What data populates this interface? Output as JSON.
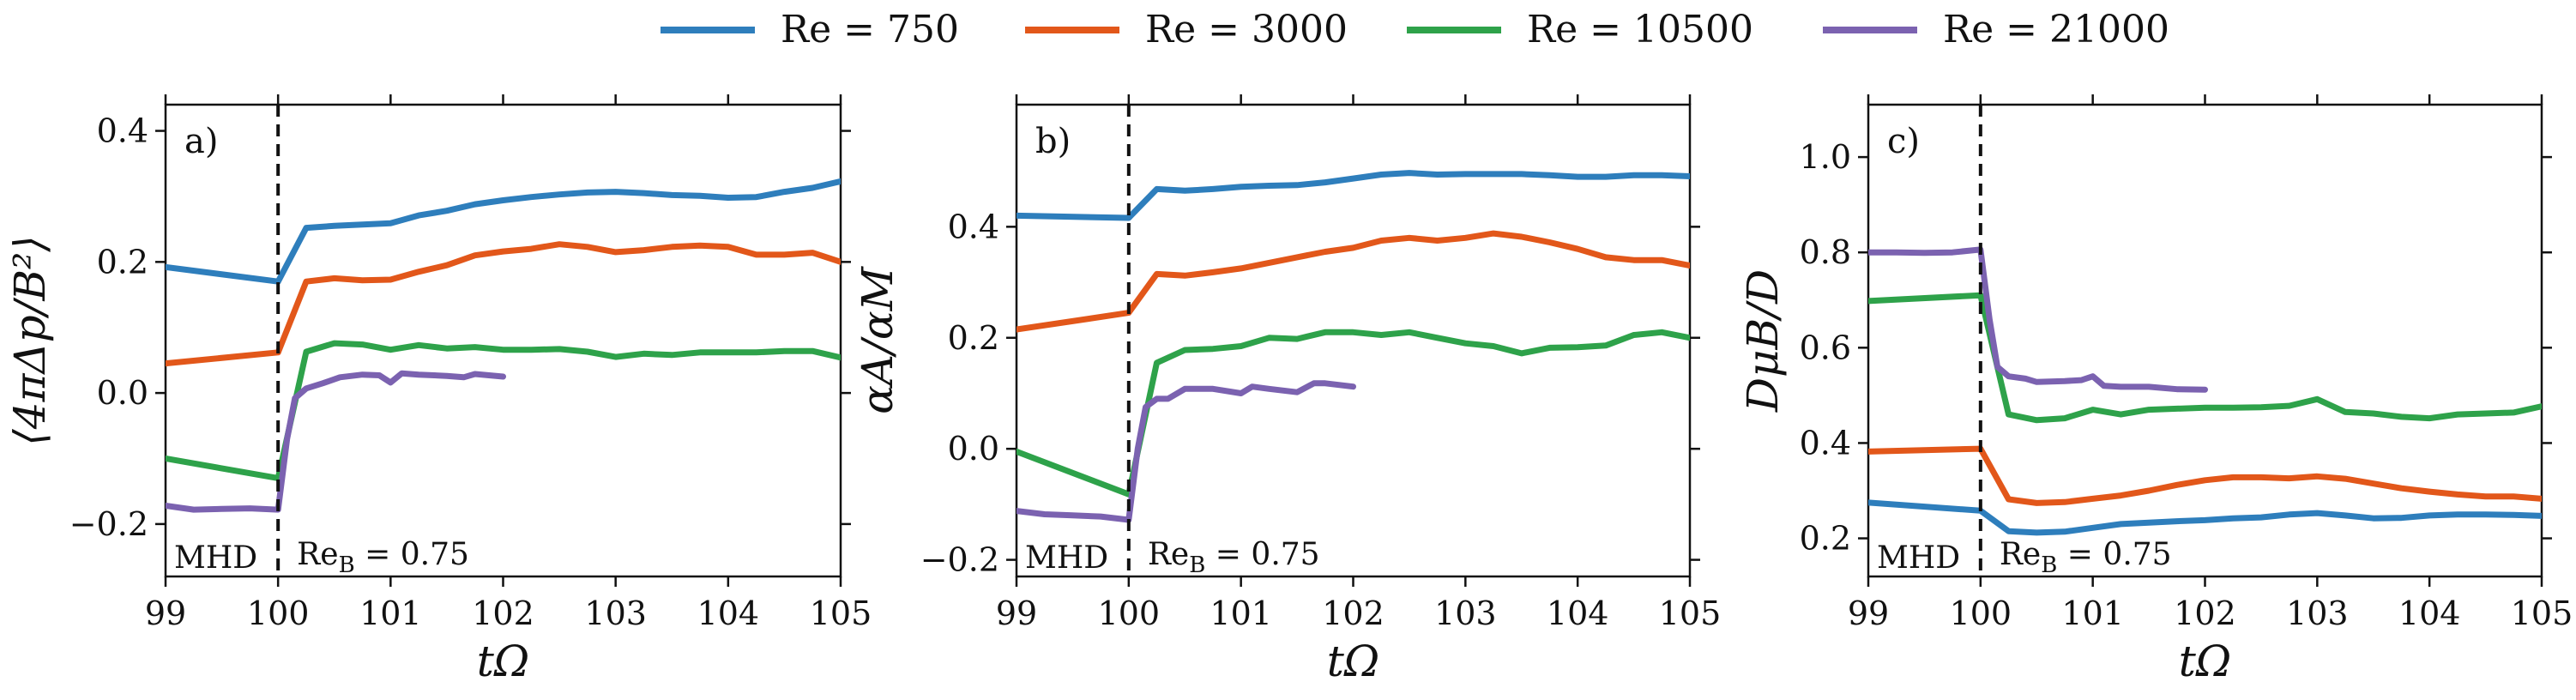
{
  "legend": {
    "entries": [
      {
        "name": "Re = 750",
        "color": "#2e7ebc"
      },
      {
        "name": "Re = 3000",
        "color": "#e2571a"
      },
      {
        "name": "Re = 10500",
        "color": "#2ea24a"
      },
      {
        "name": "Re = 21000",
        "color": "#7b62b0"
      }
    ]
  },
  "annotations": {
    "left": "MHD",
    "right": "Re",
    "right_sub": "B",
    "right_value": " = 0.75"
  },
  "chart_data": [
    {
      "type": "line",
      "panel_label": "a)",
      "xlabel": "tΩ",
      "ylabel": "⟨4πΔp/B²⟩",
      "xlim": [
        99,
        105
      ],
      "ylim": [
        -0.28,
        0.44
      ],
      "xticks": [
        99,
        100,
        101,
        102,
        103,
        104,
        105
      ],
      "xtick_labels": [
        "99",
        "100",
        "101",
        "102",
        "103",
        "104",
        "105"
      ],
      "yticks": [
        -0.2,
        0.0,
        0.2,
        0.4
      ],
      "ytick_labels": [
        "−0.2",
        "0.0",
        "0.2",
        "0.4"
      ],
      "vline_x": 100,
      "series": [
        {
          "name": "Re = 750",
          "x": [
            99,
            100,
            100.25,
            100.5,
            101,
            101.25,
            101.5,
            101.75,
            102,
            102.25,
            102.5,
            102.75,
            103,
            103.25,
            103.5,
            103.75,
            104,
            104.25,
            104.5,
            104.75,
            105
          ],
          "y": [
            0.192,
            0.17,
            0.252,
            0.255,
            0.259,
            0.271,
            0.278,
            0.288,
            0.294,
            0.299,
            0.303,
            0.306,
            0.307,
            0.305,
            0.302,
            0.301,
            0.298,
            0.299,
            0.307,
            0.313,
            0.323
          ]
        },
        {
          "name": "Re = 3000",
          "x": [
            99,
            100,
            100.25,
            100.5,
            100.75,
            101,
            101.25,
            101.5,
            101.75,
            102,
            102.25,
            102.5,
            102.75,
            103,
            103.25,
            103.5,
            103.75,
            104,
            104.25,
            104.5,
            104.75,
            105
          ],
          "y": [
            0.045,
            0.062,
            0.17,
            0.175,
            0.172,
            0.173,
            0.185,
            0.195,
            0.21,
            0.216,
            0.22,
            0.227,
            0.223,
            0.215,
            0.218,
            0.223,
            0.225,
            0.223,
            0.211,
            0.211,
            0.214,
            0.2
          ]
        },
        {
          "name": "Re = 10500",
          "x": [
            99,
            100,
            100.25,
            100.5,
            100.75,
            101,
            101.25,
            101.5,
            101.75,
            102,
            102.25,
            102.5,
            102.75,
            103,
            103.25,
            103.5,
            103.75,
            104,
            104.25,
            104.5,
            104.75,
            105
          ],
          "y": [
            -0.1,
            -0.13,
            0.063,
            0.076,
            0.074,
            0.066,
            0.073,
            0.068,
            0.07,
            0.066,
            0.066,
            0.067,
            0.063,
            0.055,
            0.06,
            0.058,
            0.062,
            0.062,
            0.062,
            0.064,
            0.064,
            0.054
          ]
        },
        {
          "name": "Re = 21000",
          "x": [
            99,
            99.25,
            99.5,
            99.75,
            100,
            100.08,
            100.15,
            100.25,
            100.4,
            100.55,
            100.75,
            100.9,
            101,
            101.1,
            101.25,
            101.5,
            101.65,
            101.75,
            102
          ],
          "y": [
            -0.172,
            -0.178,
            -0.177,
            -0.176,
            -0.178,
            -0.07,
            -0.008,
            0.007,
            0.015,
            0.024,
            0.028,
            0.027,
            0.016,
            0.03,
            0.028,
            0.026,
            0.024,
            0.029,
            0.025
          ]
        }
      ]
    },
    {
      "type": "line",
      "panel_label": "b)",
      "xlabel": "tΩ",
      "ylabel": "αA/αM",
      "xlim": [
        99,
        105
      ],
      "ylim": [
        -0.23,
        0.62
      ],
      "xticks": [
        99,
        100,
        101,
        102,
        103,
        104,
        105
      ],
      "xtick_labels": [
        "99",
        "100",
        "101",
        "102",
        "103",
        "104",
        "105"
      ],
      "yticks": [
        -0.2,
        0.0,
        0.2,
        0.4
      ],
      "ytick_labels": [
        "−0.2",
        "0.0",
        "0.2",
        "0.4"
      ],
      "vline_x": 100,
      "series": [
        {
          "name": "Re = 750",
          "x": [
            99,
            100,
            100.25,
            100.5,
            100.75,
            101,
            101.25,
            101.5,
            101.75,
            102,
            102.25,
            102.5,
            102.75,
            103,
            103.25,
            103.5,
            103.75,
            104,
            104.25,
            104.5,
            104.75,
            105
          ],
          "y": [
            0.42,
            0.416,
            0.468,
            0.465,
            0.468,
            0.472,
            0.474,
            0.475,
            0.48,
            0.487,
            0.494,
            0.497,
            0.494,
            0.495,
            0.495,
            0.495,
            0.493,
            0.49,
            0.49,
            0.493,
            0.493,
            0.491
          ]
        },
        {
          "name": "Re = 3000",
          "x": [
            99,
            100,
            100.25,
            100.5,
            100.75,
            101,
            101.25,
            101.5,
            101.75,
            102,
            102.25,
            102.5,
            102.75,
            103,
            103.25,
            103.5,
            103.75,
            104,
            104.25,
            104.5,
            104.75,
            105
          ],
          "y": [
            0.215,
            0.245,
            0.315,
            0.312,
            0.318,
            0.325,
            0.335,
            0.345,
            0.355,
            0.362,
            0.375,
            0.38,
            0.375,
            0.38,
            0.388,
            0.382,
            0.372,
            0.36,
            0.345,
            0.34,
            0.34,
            0.33
          ]
        },
        {
          "name": "Re = 10500",
          "x": [
            99,
            100,
            100.25,
            100.5,
            100.75,
            101,
            101.25,
            101.5,
            101.75,
            102,
            102.25,
            102.5,
            102.75,
            103,
            103.25,
            103.5,
            103.75,
            104,
            104.25,
            104.5,
            104.75,
            105
          ],
          "y": [
            -0.005,
            -0.082,
            0.155,
            0.178,
            0.18,
            0.185,
            0.2,
            0.198,
            0.21,
            0.21,
            0.205,
            0.21,
            0.2,
            0.19,
            0.185,
            0.172,
            0.182,
            0.183,
            0.186,
            0.205,
            0.21,
            0.2
          ]
        },
        {
          "name": "Re = 21000",
          "x": [
            99,
            99.25,
            99.5,
            99.75,
            100,
            100.08,
            100.15,
            100.25,
            100.35,
            100.5,
            100.75,
            101,
            101.1,
            101.25,
            101.5,
            101.65,
            101.75,
            102
          ],
          "y": [
            -0.112,
            -0.118,
            -0.12,
            -0.122,
            -0.128,
            0.0,
            0.075,
            0.09,
            0.09,
            0.108,
            0.108,
            0.1,
            0.112,
            0.108,
            0.102,
            0.118,
            0.118,
            0.112
          ]
        }
      ]
    },
    {
      "type": "line",
      "panel_label": "c)",
      "xlabel": "tΩ",
      "ylabel": "DμB/D",
      "xlim": [
        99,
        105
      ],
      "ylim": [
        0.12,
        1.11
      ],
      "xticks": [
        99,
        100,
        101,
        102,
        103,
        104,
        105
      ],
      "xtick_labels": [
        "99",
        "100",
        "101",
        "102",
        "103",
        "104",
        "105"
      ],
      "yticks": [
        0.2,
        0.4,
        0.6,
        0.8,
        1.0
      ],
      "ytick_labels": [
        "0.2",
        "0.4",
        "0.6",
        "0.8",
        "1.0"
      ],
      "vline_x": 100,
      "series": [
        {
          "name": "Re = 750",
          "x": [
            99,
            100,
            100.25,
            100.5,
            100.75,
            101,
            101.25,
            101.5,
            101.75,
            102,
            102.25,
            102.5,
            102.75,
            103,
            103.25,
            103.5,
            103.75,
            104,
            104.25,
            104.5,
            104.75,
            105
          ],
          "y": [
            0.275,
            0.258,
            0.215,
            0.212,
            0.214,
            0.222,
            0.23,
            0.233,
            0.236,
            0.238,
            0.242,
            0.244,
            0.25,
            0.253,
            0.248,
            0.242,
            0.243,
            0.248,
            0.25,
            0.25,
            0.249,
            0.247
          ]
        },
        {
          "name": "Re = 3000",
          "x": [
            99,
            100,
            100.25,
            100.5,
            100.75,
            101,
            101.25,
            101.5,
            101.75,
            102,
            102.25,
            102.5,
            102.75,
            103,
            103.25,
            103.5,
            103.75,
            104,
            104.25,
            104.5,
            104.75,
            105
          ],
          "y": [
            0.382,
            0.388,
            0.282,
            0.274,
            0.276,
            0.283,
            0.29,
            0.3,
            0.312,
            0.322,
            0.328,
            0.328,
            0.326,
            0.33,
            0.325,
            0.315,
            0.305,
            0.298,
            0.292,
            0.288,
            0.288,
            0.283
          ]
        },
        {
          "name": "Re = 10500",
          "x": [
            99,
            100,
            100.25,
            100.5,
            100.75,
            101,
            101.25,
            101.5,
            101.75,
            102,
            102.25,
            102.5,
            102.75,
            103,
            103.25,
            103.5,
            103.75,
            104,
            104.25,
            104.5,
            104.75,
            105
          ],
          "y": [
            0.698,
            0.71,
            0.46,
            0.448,
            0.452,
            0.47,
            0.46,
            0.47,
            0.472,
            0.474,
            0.474,
            0.475,
            0.478,
            0.492,
            0.465,
            0.462,
            0.455,
            0.452,
            0.46,
            0.462,
            0.464,
            0.477
          ]
        },
        {
          "name": "Re = 21000",
          "x": [
            99,
            99.25,
            99.5,
            99.75,
            100,
            100.08,
            100.15,
            100.25,
            100.4,
            100.5,
            100.75,
            100.9,
            101,
            101.1,
            101.25,
            101.5,
            101.75,
            102
          ],
          "y": [
            0.8,
            0.8,
            0.799,
            0.8,
            0.806,
            0.66,
            0.56,
            0.54,
            0.535,
            0.528,
            0.53,
            0.532,
            0.54,
            0.52,
            0.518,
            0.518,
            0.513,
            0.512
          ]
        }
      ]
    }
  ]
}
